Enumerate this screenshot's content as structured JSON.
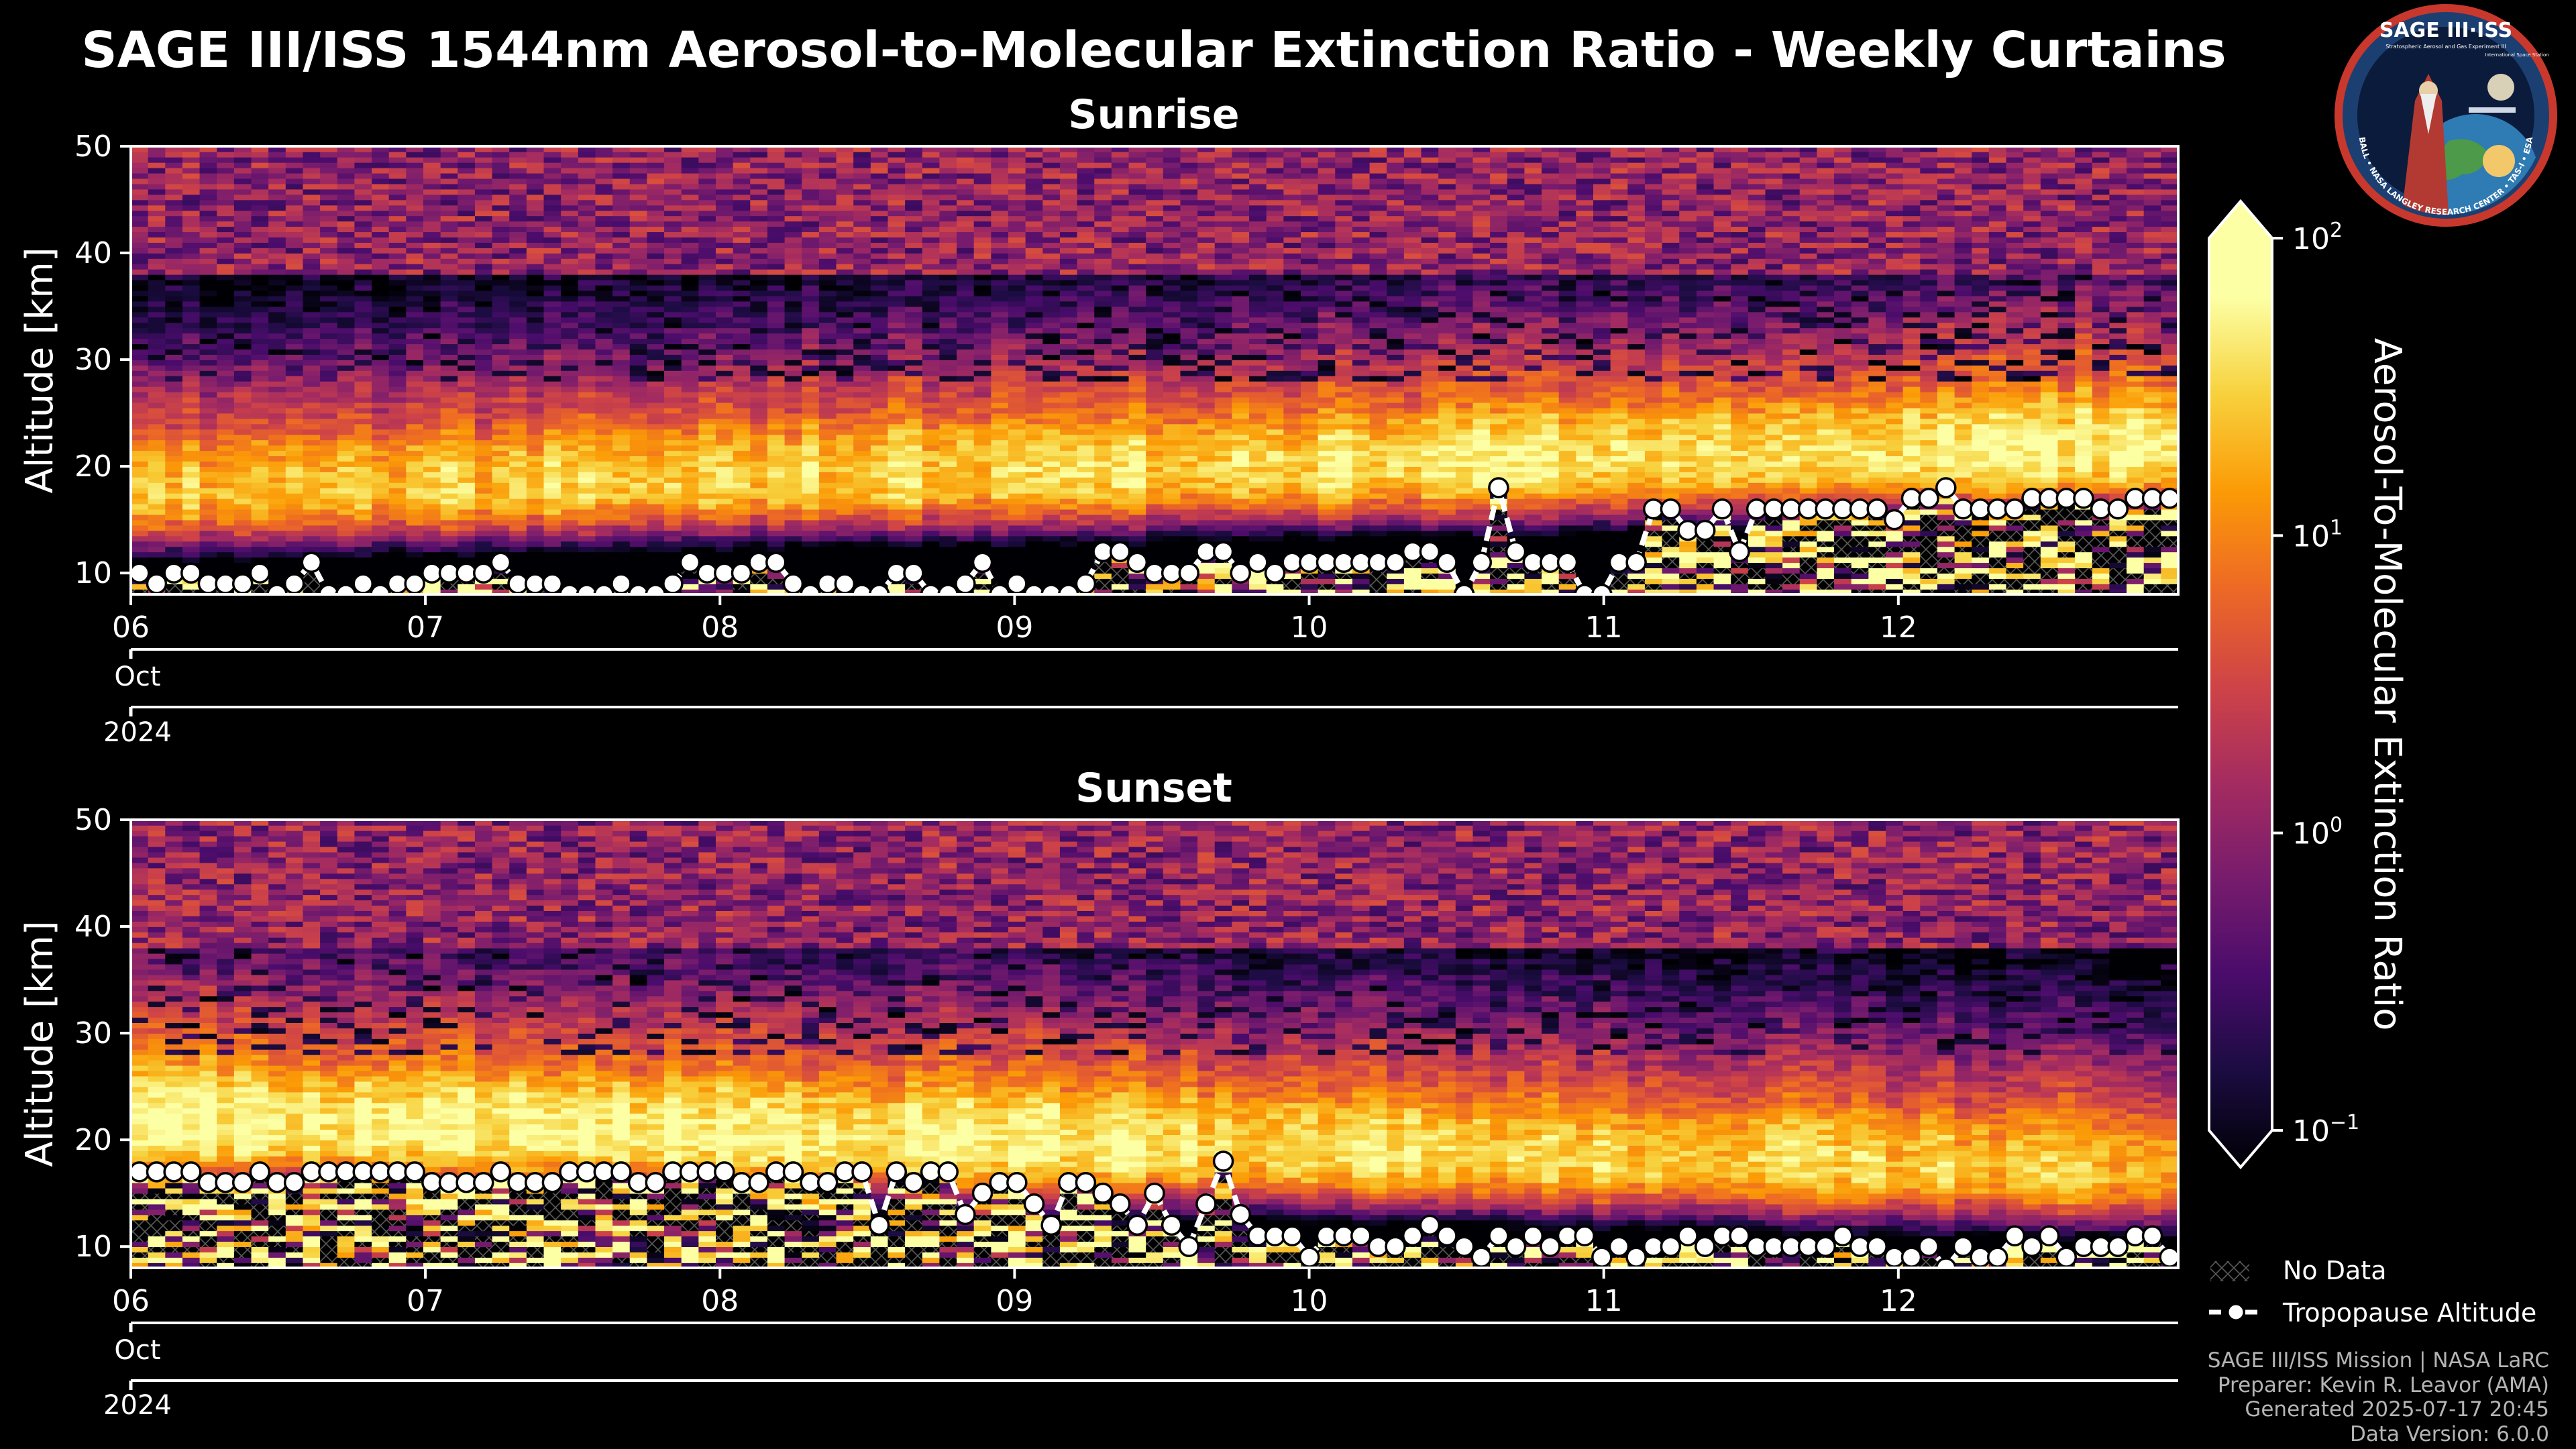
{
  "title": "SAGE III/ISS 1544nm Aerosol-to-Molecular Extinction Ratio - Weekly Curtains",
  "colors": {
    "background": "#000000",
    "text": "#ffffff",
    "footer": "#b4b4b4",
    "tropopause": "#ffffff"
  },
  "chart_data": [
    {
      "type": "heatmap",
      "title": "Sunrise",
      "ylabel": "Altitude [km]",
      "ylim": [
        8,
        50
      ],
      "yticks": [
        10,
        20,
        30,
        40,
        50
      ],
      "x_ticks": [
        "06",
        "07",
        "08",
        "09",
        "10",
        "11",
        "12"
      ],
      "month_label": "Oct",
      "year_label": "2024",
      "x_range_days": [
        6.0,
        12.95
      ],
      "stratospheric_layer": {
        "peak_km_start": 17.5,
        "peak_km_end": 21.5,
        "peak_ratio_start": 18,
        "peak_ratio_end": 45
      },
      "tropopause_altitude_km": [
        10,
        9,
        10,
        10,
        9,
        9,
        9,
        10,
        8,
        9,
        11,
        8,
        8,
        9,
        8,
        9,
        9,
        10,
        10,
        10,
        10,
        11,
        9,
        9,
        9,
        8,
        8,
        8,
        9,
        8,
        8,
        9,
        11,
        10,
        10,
        10,
        11,
        11,
        9,
        8,
        9,
        9,
        8,
        8,
        10,
        10,
        8,
        8,
        9,
        11,
        8,
        9,
        8,
        8,
        8,
        9,
        12,
        12,
        11,
        10,
        10,
        10,
        12,
        12,
        10,
        11,
        10,
        11,
        11,
        11,
        11,
        11,
        11,
        11,
        12,
        12,
        11,
        8,
        11,
        18,
        12,
        11,
        11,
        11,
        8,
        8,
        11,
        11,
        16,
        16,
        14,
        14,
        16,
        12,
        16,
        16,
        16,
        16,
        16,
        16,
        16,
        16,
        15,
        17,
        17,
        18,
        16,
        16,
        16,
        16,
        17,
        17,
        17,
        17,
        16,
        16,
        17,
        17,
        17
      ]
    },
    {
      "type": "heatmap",
      "title": "Sunset",
      "ylabel": "Altitude [km]",
      "ylim": [
        8,
        50
      ],
      "yticks": [
        10,
        20,
        30,
        40,
        50
      ],
      "x_ticks": [
        "06",
        "07",
        "08",
        "09",
        "10",
        "11",
        "12"
      ],
      "month_label": "Oct",
      "year_label": "2024",
      "x_range_days": [
        6.0,
        12.95
      ],
      "stratospheric_layer": {
        "peak_km_start": 21.5,
        "peak_km_end": 17,
        "peak_ratio_start": 55,
        "peak_ratio_end": 18
      },
      "tropopause_altitude_km": [
        17,
        17,
        17,
        17,
        16,
        16,
        16,
        17,
        16,
        16,
        17,
        17,
        17,
        17,
        17,
        17,
        17,
        16,
        16,
        16,
        16,
        17,
        16,
        16,
        16,
        17,
        17,
        17,
        17,
        16,
        16,
        17,
        17,
        17,
        17,
        16,
        16,
        17,
        17,
        16,
        16,
        17,
        17,
        12,
        17,
        16,
        17,
        17,
        13,
        15,
        16,
        16,
        14,
        12,
        16,
        16,
        15,
        14,
        12,
        15,
        12,
        10,
        14,
        18,
        13,
        11,
        11,
        11,
        9,
        11,
        11,
        11,
        10,
        10,
        11,
        12,
        11,
        10,
        9,
        11,
        10,
        11,
        10,
        11,
        11,
        9,
        10,
        9,
        10,
        10,
        11,
        10,
        11,
        11,
        10,
        10,
        10,
        10,
        10,
        11,
        10,
        10,
        9,
        9,
        10,
        8,
        10,
        9,
        9,
        11,
        10,
        11,
        9,
        10,
        10,
        10,
        11,
        11,
        9
      ]
    }
  ],
  "colorbar": {
    "label": "Aerosol-To-Molecular Extinction Ratio",
    "scale": "log",
    "range": [
      0.1,
      100
    ],
    "ticks": [
      {
        "value": 100,
        "base": "10",
        "exp": "2"
      },
      {
        "value": 10,
        "base": "10",
        "exp": "1"
      },
      {
        "value": 1,
        "base": "10",
        "exp": "0"
      },
      {
        "value": 0.1,
        "base": "10",
        "exp": "−1"
      }
    ],
    "colormap": "inferno"
  },
  "legend": {
    "no_data": "No Data",
    "tropopause": "Tropopause Altitude"
  },
  "footer": [
    "SAGE III/ISS Mission | NASA LaRC",
    "Preparer: Kevin R. Leavor (AMA)",
    "Generated 2025-07-17 20:45",
    "Data Version: 6.0.0"
  ],
  "logo": {
    "title": "SAGE III·ISS",
    "subtitle": "Stratospheric Aerosol and Gas Experiment III",
    "side_text": "International Space Station",
    "ring_text": "BALL • NASA LANGLEY RESEARCH CENTER • TAS-I • ESA"
  }
}
